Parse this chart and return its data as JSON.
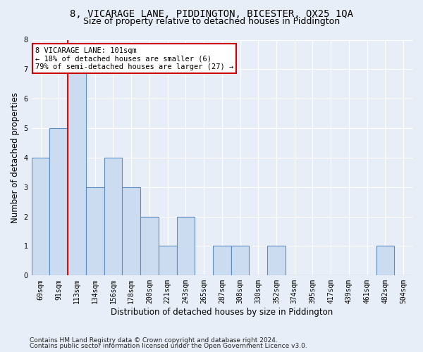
{
  "title": "8, VICARAGE LANE, PIDDINGTON, BICESTER, OX25 1QA",
  "subtitle": "Size of property relative to detached houses in Piddington",
  "xlabel": "Distribution of detached houses by size in Piddington",
  "ylabel": "Number of detached properties",
  "categories": [
    "69sqm",
    "91sqm",
    "113sqm",
    "134sqm",
    "156sqm",
    "178sqm",
    "200sqm",
    "221sqm",
    "243sqm",
    "265sqm",
    "287sqm",
    "308sqm",
    "330sqm",
    "352sqm",
    "374sqm",
    "395sqm",
    "417sqm",
    "439sqm",
    "461sqm",
    "482sqm",
    "504sqm"
  ],
  "bar_heights": [
    4,
    5,
    7,
    3,
    4,
    3,
    2,
    1,
    2,
    0,
    1,
    1,
    0,
    1,
    0,
    0,
    0,
    0,
    0,
    1,
    0
  ],
  "bar_color": "#ccdcf0",
  "bar_edge_color": "#5b8ec4",
  "red_line_x": 1.5,
  "ylim": [
    0,
    8
  ],
  "yticks": [
    0,
    1,
    2,
    3,
    4,
    5,
    6,
    7,
    8
  ],
  "annotation_box_text": "8 VICARAGE LANE: 101sqm\n← 18% of detached houses are smaller (6)\n79% of semi-detached houses are larger (27) →",
  "annotation_box_color": "#ffffff",
  "annotation_box_edge_color": "#cc0000",
  "footer_line1": "Contains HM Land Registry data © Crown copyright and database right 2024.",
  "footer_line2": "Contains public sector information licensed under the Open Government Licence v3.0.",
  "bg_color": "#e8eef7",
  "plot_bg_color": "#e8eef7",
  "grid_color": "#ffffff",
  "title_fontsize": 10,
  "subtitle_fontsize": 9,
  "axis_label_fontsize": 8.5,
  "tick_fontsize": 7,
  "footer_fontsize": 6.5,
  "annotation_fontsize": 7.5
}
